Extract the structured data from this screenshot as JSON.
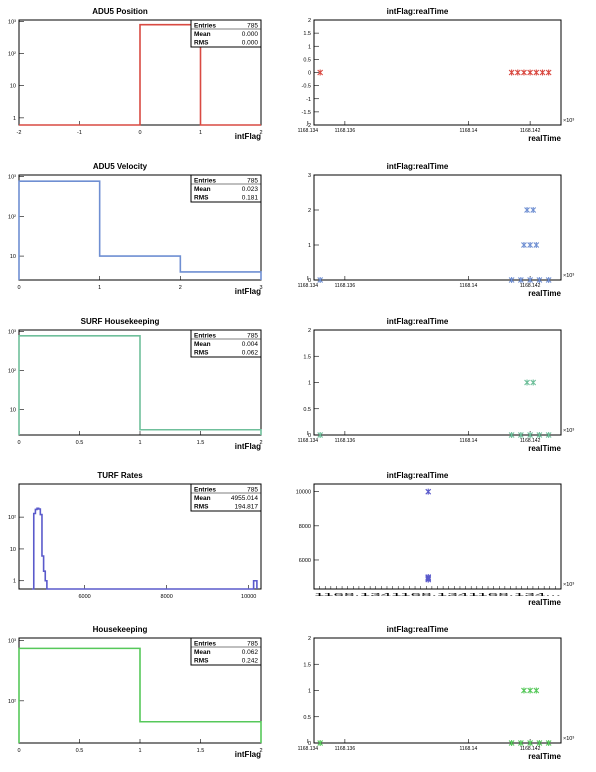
{
  "chart_data": [
    {
      "type": "histogram",
      "title": "ADU5 Position",
      "xlabel": "intFlag",
      "xlim": [
        -2,
        2
      ],
      "ylim": [
        0.6,
        1100
      ],
      "log_y": true,
      "x_ticks": [
        {
          "value": -2,
          "label": "-2"
        },
        {
          "value": -1,
          "label": "-1"
        },
        {
          "value": 0,
          "label": "0"
        },
        {
          "value": 1,
          "label": "1"
        },
        {
          "value": 2,
          "label": "2"
        }
      ],
      "y_ticks": [
        {
          "value": 1,
          "label": "1"
        },
        {
          "value": 10,
          "label": "10"
        },
        {
          "value": 100,
          "label": "10²"
        },
        {
          "value": 1000,
          "label": "10³"
        }
      ],
      "bins": [
        {
          "x0": -2,
          "x1": 0,
          "value": 0
        },
        {
          "x0": 0,
          "x1": 1,
          "value": 785
        },
        {
          "x0": 1,
          "x1": 2,
          "value": 0
        }
      ],
      "color": "#d94a42",
      "stats": {
        "entries_label": "Entries",
        "entries": "785",
        "mean_label": "Mean",
        "mean": "0.000",
        "rms_label": "RMS",
        "rms": "0.000"
      }
    },
    {
      "type": "scatter",
      "title": "intFlag:realTime",
      "xlabel": "realTime",
      "xlim": [
        1168.135,
        1168.143
      ],
      "ylim": [
        -2,
        2
      ],
      "x_ticks": [
        {
          "value": 1168.1348,
          "label": "1168.134"
        },
        {
          "value": 1168.136,
          "label": "1168.136"
        },
        {
          "value": 1168.14,
          "label": "1168.14"
        },
        {
          "value": 1168.142,
          "label": "1168.142"
        }
      ],
      "y_ticks": [
        {
          "value": -2,
          "label": "-2"
        },
        {
          "value": -1.5,
          "label": "-1.5"
        },
        {
          "value": -1,
          "label": "-1"
        },
        {
          "value": -0.5,
          "label": "-0.5"
        },
        {
          "value": 0,
          "label": "0"
        },
        {
          "value": 0.5,
          "label": "0.5"
        },
        {
          "value": 1,
          "label": "1"
        },
        {
          "value": 1.5,
          "label": "1.5"
        },
        {
          "value": 2,
          "label": "2"
        }
      ],
      "exponent_label": "×10³",
      "points": [
        {
          "x": 1168.1352,
          "y": 0
        },
        {
          "x": 1168.1414,
          "y": 0
        },
        {
          "x": 1168.1416,
          "y": 0
        },
        {
          "x": 1168.1418,
          "y": 0
        },
        {
          "x": 1168.142,
          "y": 0
        },
        {
          "x": 1168.1422,
          "y": 0
        },
        {
          "x": 1168.1424,
          "y": 0
        },
        {
          "x": 1168.1426,
          "y": 0
        }
      ],
      "color": "#d94a42"
    },
    {
      "type": "histogram",
      "title": "ADU5 Velocity",
      "xlabel": "intFlag",
      "xlim": [
        0,
        3
      ],
      "ylim": [
        2.5,
        1100
      ],
      "log_y": true,
      "x_ticks": [
        {
          "value": 0,
          "label": "0"
        },
        {
          "value": 1,
          "label": "1"
        },
        {
          "value": 2,
          "label": "2"
        },
        {
          "value": 3,
          "label": "3"
        }
      ],
      "y_ticks": [
        {
          "value": 10,
          "label": "10"
        },
        {
          "value": 100,
          "label": "10²"
        },
        {
          "value": 1000,
          "label": "10³"
        }
      ],
      "bins": [
        {
          "x0": 0,
          "x1": 1,
          "value": 770
        },
        {
          "x0": 1,
          "x1": 2,
          "value": 10
        },
        {
          "x0": 2,
          "x1": 3,
          "value": 4
        }
      ],
      "color": "#6f8fd2",
      "stats": {
        "entries_label": "Entries",
        "entries": "785",
        "mean_label": "Mean",
        "mean": "0.023",
        "rms_label": "RMS",
        "rms": "0.181"
      }
    },
    {
      "type": "scatter",
      "title": "intFlag:realTime",
      "xlabel": "realTime",
      "xlim": [
        1168.135,
        1168.143
      ],
      "ylim": [
        0,
        3
      ],
      "x_ticks": [
        {
          "value": 1168.1348,
          "label": "1168.134"
        },
        {
          "value": 1168.136,
          "label": "1168.136"
        },
        {
          "value": 1168.14,
          "label": "1168.14"
        },
        {
          "value": 1168.142,
          "label": "1168.142"
        }
      ],
      "y_ticks": [
        {
          "value": 0,
          "label": "0"
        },
        {
          "value": 1,
          "label": "1"
        },
        {
          "value": 2,
          "label": "2"
        },
        {
          "value": 3,
          "label": "3"
        }
      ],
      "exponent_label": "×10³",
      "points": [
        {
          "x": 1168.1352,
          "y": 0
        },
        {
          "x": 1168.1414,
          "y": 0
        },
        {
          "x": 1168.1417,
          "y": 0
        },
        {
          "x": 1168.142,
          "y": 0
        },
        {
          "x": 1168.1423,
          "y": 0
        },
        {
          "x": 1168.1426,
          "y": 0
        },
        {
          "x": 1168.1418,
          "y": 1
        },
        {
          "x": 1168.142,
          "y": 1
        },
        {
          "x": 1168.1422,
          "y": 1
        },
        {
          "x": 1168.1419,
          "y": 2
        },
        {
          "x": 1168.1421,
          "y": 2
        }
      ],
      "color": "#6f8fd2"
    },
    {
      "type": "histogram",
      "title": "SURF Housekeeping",
      "xlabel": "intFlag",
      "xlim": [
        0,
        2
      ],
      "ylim": [
        2.2,
        1100
      ],
      "log_y": true,
      "x_ticks": [
        {
          "value": 0,
          "label": "0"
        },
        {
          "value": 0.5,
          "label": "0.5"
        },
        {
          "value": 1,
          "label": "1"
        },
        {
          "value": 1.5,
          "label": "1.5"
        },
        {
          "value": 2,
          "label": "2"
        }
      ],
      "y_ticks": [
        {
          "value": 10,
          "label": "10"
        },
        {
          "value": 100,
          "label": "10²"
        },
        {
          "value": 1000,
          "label": "10³"
        }
      ],
      "bins": [
        {
          "x0": 0,
          "x1": 1,
          "value": 780
        },
        {
          "x0": 1,
          "x1": 2,
          "value": 3
        }
      ],
      "color": "#6fbf9b",
      "stats": {
        "entries_label": "Entries",
        "entries": "785",
        "mean_label": "Mean",
        "mean": "0.004",
        "rms_label": "RMS",
        "rms": "0.062"
      }
    },
    {
      "type": "scatter",
      "title": "intFlag:realTime",
      "xlabel": "realTime",
      "xlim": [
        1168.135,
        1168.143
      ],
      "ylim": [
        0,
        2
      ],
      "x_ticks": [
        {
          "value": 1168.1348,
          "label": "1168.134"
        },
        {
          "value": 1168.136,
          "label": "1168.136"
        },
        {
          "value": 1168.14,
          "label": "1168.14"
        },
        {
          "value": 1168.142,
          "label": "1168.142"
        }
      ],
      "y_ticks": [
        {
          "value": 0,
          "label": "0"
        },
        {
          "value": 0.5,
          "label": "0.5"
        },
        {
          "value": 1,
          "label": "1"
        },
        {
          "value": 1.5,
          "label": "1.5"
        },
        {
          "value": 2,
          "label": "2"
        }
      ],
      "exponent_label": "×10³",
      "points": [
        {
          "x": 1168.1352,
          "y": 0
        },
        {
          "x": 1168.1414,
          "y": 0
        },
        {
          "x": 1168.1417,
          "y": 0
        },
        {
          "x": 1168.142,
          "y": 0
        },
        {
          "x": 1168.1423,
          "y": 0
        },
        {
          "x": 1168.1426,
          "y": 0
        },
        {
          "x": 1168.1419,
          "y": 1
        },
        {
          "x": 1168.1421,
          "y": 1
        }
      ],
      "color": "#6fbf9b"
    },
    {
      "type": "histogram",
      "title": "TURF Rates",
      "xlabel": "",
      "xlim": [
        4400,
        10300
      ],
      "ylim": [
        0.55,
        1100
      ],
      "log_y": true,
      "x_ticks": [
        {
          "value": 6000,
          "label": "6000"
        },
        {
          "value": 8000,
          "label": "8000"
        },
        {
          "value": 10000,
          "label": "10000"
        }
      ],
      "y_ticks": [
        {
          "value": 1,
          "label": "1"
        },
        {
          "value": 10,
          "label": "10"
        },
        {
          "value": 100,
          "label": "10²"
        }
      ],
      "bins": [
        {
          "x0": 4720,
          "x1": 4760,
          "value": 0
        },
        {
          "x0": 4760,
          "x1": 4800,
          "value": 130
        },
        {
          "x0": 4800,
          "x1": 4840,
          "value": 175
        },
        {
          "x0": 4840,
          "x1": 4880,
          "value": 190
        },
        {
          "x0": 4880,
          "x1": 4920,
          "value": 180
        },
        {
          "x0": 4920,
          "x1": 4960,
          "value": 120
        },
        {
          "x0": 4960,
          "x1": 5000,
          "value": 6
        },
        {
          "x0": 5000,
          "x1": 5040,
          "value": 2
        },
        {
          "x0": 5040,
          "x1": 5080,
          "value": 1
        },
        {
          "x0": 5080,
          "x1": 10120,
          "value": 0
        },
        {
          "x0": 10120,
          "x1": 10200,
          "value": 1
        }
      ],
      "color": "#5a5acb",
      "stats": {
        "entries_label": "Entries",
        "entries": "785",
        "mean_label": "Mean",
        "mean": "4955.014",
        "rms_label": "RMS",
        "rms": "194.817"
      }
    },
    {
      "type": "scatter",
      "title": "intFlag:realTime",
      "xlabel": "realTime",
      "xlim": [
        1168.135,
        1168.143
      ],
      "ylim": [
        4300,
        10450
      ],
      "y_ticks": [
        {
          "value": 6000,
          "label": "6000"
        },
        {
          "value": 8000,
          "label": "8000"
        },
        {
          "value": 10000,
          "label": "10000"
        }
      ],
      "x_tick_labels_note": "1168.1341168.1341168.134...",
      "exponent_label": "×10³",
      "points": [
        {
          "x": 1168.1387,
          "y": 5000
        },
        {
          "x": 1168.1387,
          "y": 4950
        },
        {
          "x": 1168.1387,
          "y": 4900
        },
        {
          "x": 1168.1387,
          "y": 4850
        },
        {
          "x": 1168.1387,
          "y": 10000
        }
      ],
      "color": "#5a5acb"
    },
    {
      "type": "histogram",
      "title": "Housekeeping",
      "xlabel": "intFlag",
      "xlim": [
        0,
        2
      ],
      "ylim": [
        20,
        1100
      ],
      "log_y": true,
      "x_ticks": [
        {
          "value": 0,
          "label": "0"
        },
        {
          "value": 0.5,
          "label": "0.5"
        },
        {
          "value": 1,
          "label": "1"
        },
        {
          "value": 1.5,
          "label": "1.5"
        },
        {
          "value": 2,
          "label": "2"
        }
      ],
      "y_ticks": [
        {
          "value": 100,
          "label": "10²"
        },
        {
          "value": 1000,
          "label": "10³"
        }
      ],
      "bins": [
        {
          "x0": 0,
          "x1": 1,
          "value": 740
        },
        {
          "x0": 1,
          "x1": 2,
          "value": 45
        }
      ],
      "color": "#56c85a",
      "stats": {
        "entries_label": "Entries",
        "entries": "785",
        "mean_label": "Mean",
        "mean": "0.062",
        "rms_label": "RMS",
        "rms": "0.242"
      }
    },
    {
      "type": "scatter",
      "title": "intFlag:realTime",
      "xlabel": "realTime",
      "xlim": [
        1168.135,
        1168.143
      ],
      "ylim": [
        0,
        2
      ],
      "x_ticks": [
        {
          "value": 1168.1348,
          "label": "1168.134"
        },
        {
          "value": 1168.136,
          "label": "1168.136"
        },
        {
          "value": 1168.14,
          "label": "1168.14"
        },
        {
          "value": 1168.142,
          "label": "1168.142"
        }
      ],
      "y_ticks": [
        {
          "value": 0,
          "label": "0"
        },
        {
          "value": 0.5,
          "label": "0.5"
        },
        {
          "value": 1,
          "label": "1"
        },
        {
          "value": 1.5,
          "label": "1.5"
        },
        {
          "value": 2,
          "label": "2"
        }
      ],
      "exponent_label": "×10³",
      "points": [
        {
          "x": 1168.1352,
          "y": 0
        },
        {
          "x": 1168.1414,
          "y": 0
        },
        {
          "x": 1168.1417,
          "y": 0
        },
        {
          "x": 1168.142,
          "y": 0
        },
        {
          "x": 1168.1423,
          "y": 0
        },
        {
          "x": 1168.1426,
          "y": 0
        },
        {
          "x": 1168.1418,
          "y": 1
        },
        {
          "x": 1168.142,
          "y": 1
        },
        {
          "x": 1168.1422,
          "y": 1
        }
      ],
      "color": "#56c85a"
    }
  ]
}
